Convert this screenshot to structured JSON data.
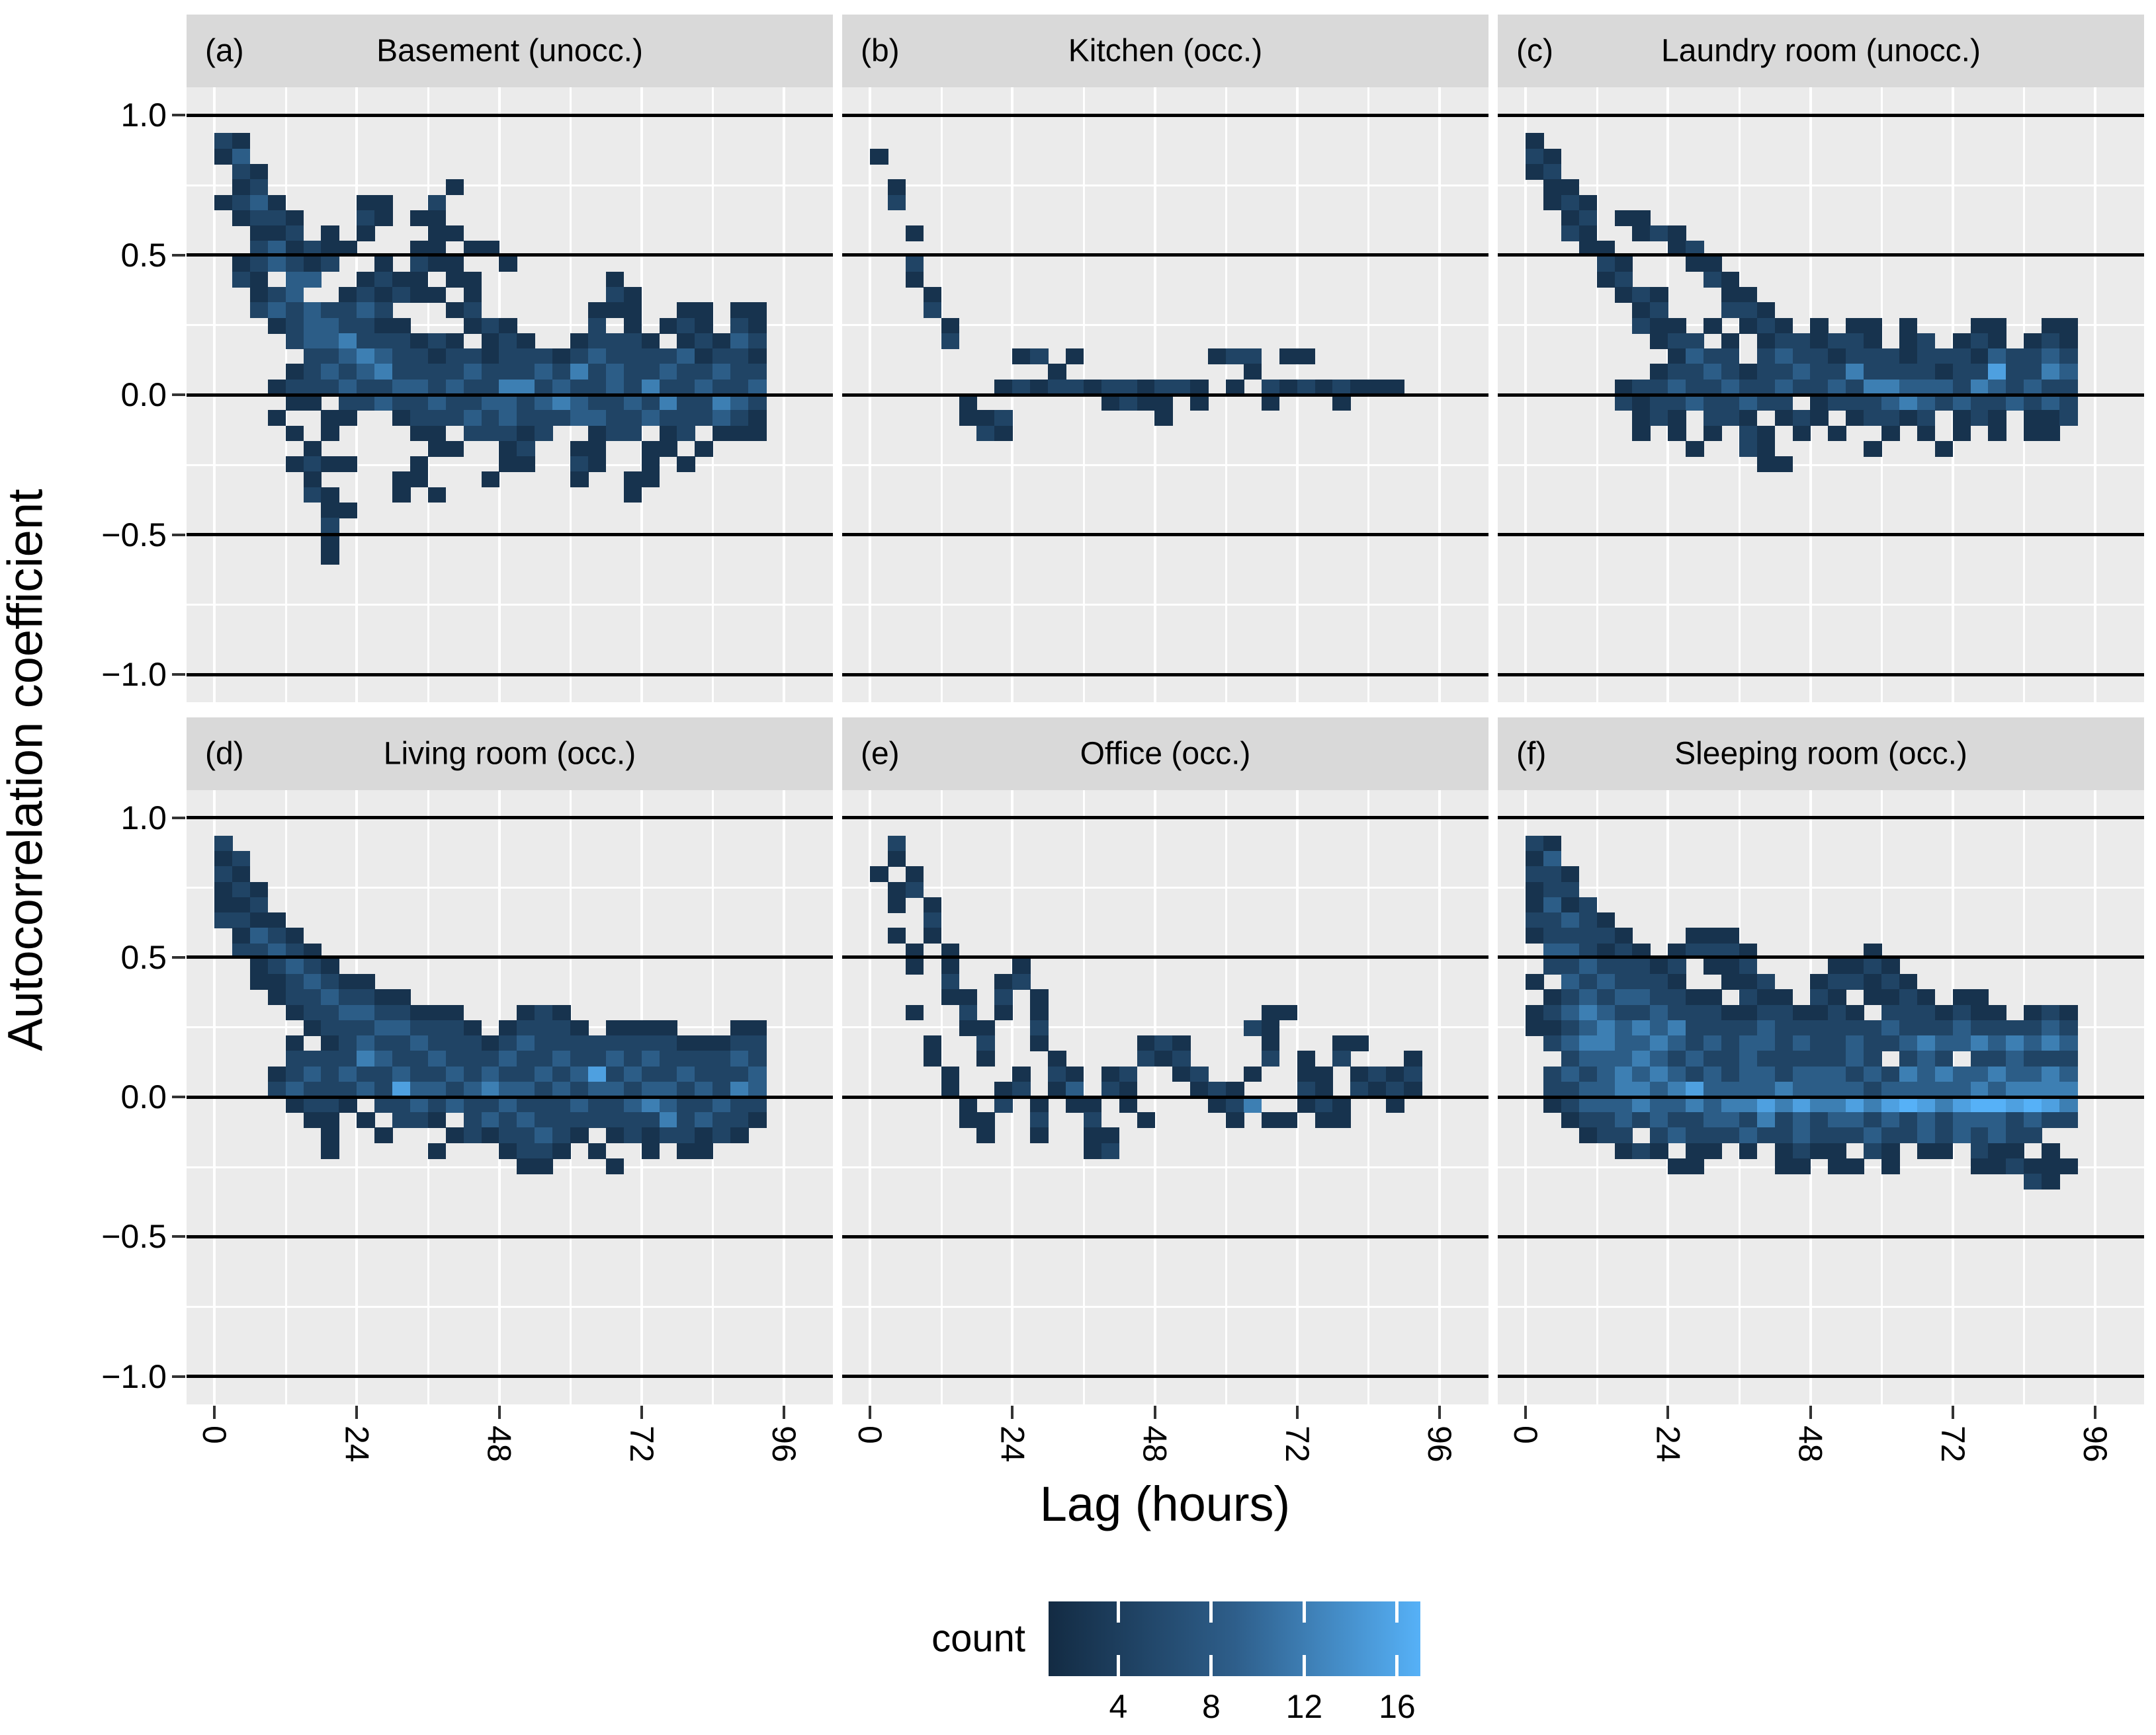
{
  "figure": {
    "y_axis_title": "Autocorrelation coefficient",
    "x_axis_title": "Lag (hours)",
    "y_tick_labels": [
      "1.0",
      "0.5",
      "0.0",
      "−0.5",
      "−1.0"
    ],
    "x_tick_labels": [
      "0",
      "24",
      "48",
      "72",
      "96"
    ]
  },
  "legend": {
    "title": "count",
    "tick_labels": [
      "4",
      "8",
      "12",
      "16"
    ],
    "tick_values": [
      4,
      8,
      12,
      16
    ],
    "scale_min": 1,
    "scale_max": 17,
    "color_low": "#132B43",
    "color_high": "#56B1F7"
  },
  "colors": {
    "panel_bg": "#ebebeb",
    "strip_bg": "#d9d9d9",
    "gridline": "#ffffff",
    "refline": "#000000",
    "tick": "#333333",
    "level_colors": {
      "1": "#17334E",
      "2": "#204465",
      "3": "#2C5D87",
      "4": "#3D7FB3",
      "5": "#4EA0E0",
      "6": "#56B1F7"
    }
  },
  "chart_data": {
    "type": "heatmap",
    "subtype": "binned-2d-autocorrelation",
    "title": "",
    "xlabel": "Lag (hours)",
    "ylabel": "Autocorrelation coefficient",
    "x_range": [
      0,
      96
    ],
    "y_range": [
      -1.0,
      1.0
    ],
    "x_ticks": [
      0,
      24,
      48,
      72,
      96
    ],
    "y_ticks": [
      1.0,
      0.5,
      0.0,
      -0.5,
      -1.0
    ],
    "reference_lines_y": [
      1.0,
      0.5,
      0.0,
      -0.5,
      -1.0
    ],
    "grid_on": true,
    "legend_position": "bottom",
    "bin": {
      "x0": 0,
      "dx": 3,
      "y_top": 0.99,
      "dy": 0.055,
      "n_cols": 32
    },
    "level_to_count": {
      "1": 2,
      "2": 4,
      "3": 7,
      "4": 11,
      "5": 15,
      "6": 17
    },
    "facets": [
      {
        "tag": "(a)",
        "label": "Basement (unocc.)",
        "grid": [
          "................................",
          "21..............................",
          "13..............................",
          ".21.............................",
          ".12..........1..................",
          "1231....11..2...................",
          ".1221...21.11...................",
          "..112.1.1...11..................",
          "..231211...11.11................",
          ".123212..1.211..1...............",
          ".21.33..1211.11.......1.........",
          "..123..121211.1.......21........",
          "..23232232...12......111..11.11.",
          "...12332211...121....2.1.121.21.",
          "....2334222121.121..12221.12132.",
          ".....22343221221222123222231221.",
          "....123234222232223242322322322.",
          "...122232233232244232232422 3223.",
          "....11.2232232233234322324224 32.",
          "...1..11..12223232223322322 2321.",
          "....1.1....11.22212..122.12.111.",
          ".....1......11..12..11..11.1....",
          "....1211...1....11..21..1.1.....",
          ".....1....11...1....1..11.......",
          ".....21...1.1..........1........",
          "......11........................",
          "......2.........................",
          "......1.........................",
          "......1........................."
        ]
      },
      {
        "tag": "(b)",
        "label": "Kitchen (occ.)",
        "grid": [
          "................................",
          "................................",
          "1...............................",
          "................................",
          ".1..............................",
          ".2..............................",
          "................................",
          "..1.............................",
          "................................",
          "..2.............................",
          "..1.............................",
          "...1............................",
          "...2............................",
          "....1...........................",
          "....2...........................",
          "........12.1.......122.11.......",
          "..........1..........1..........",
          ".......121221221221.1.2121211 1..",
          ".....1.......1211.1...1...1.....",
          ".....112........1...............",
          "......21........................"
        ]
      },
      {
        "tag": "(c)",
        "label": "Laundry room (unocc.)",
        "grid": [
          "................................",
          "1...............................",
          "21..............................",
          "12..............................",
          ".11.............................",
          ".121............................",
          "..12.11.........................",
          "..21..121.......................",
          "...11...12......................",
          "....21...11.....................",
          "....12....21....................",
          ".....121...11...................",
          "......12...221..................",
          "......211.1.121.1.11.1...11..11.",
          ".......122.1.1221221.12.121.121.",
          "........1322.23221222122 2132232.",
          ".......122321223224222212252243.",
          ".....12232232232232443332432322.",
          ".....2122322322.122234323223232.",
          "......121.221.121.12212.121.112.",
          "......1.1.1.21.1.1..1.1.1.1.11..",
          ".........1..21.....1...1........",
          ".............11................."
        ]
      },
      {
        "tag": "(d)",
        "label": "Living room (occ.)",
        "grid": [
          "................................",
          "2...............................",
          "12..............................",
          "21..............................",
          "121.............................",
          "112.............................",
          "2211............................",
          ".1321...........................",
          ".22321..........................",
          "..12321.........................",
          "..1123211.......................",
          "...12232211.....................",
          "....1223322111...121............",
          ".....1222332221.12221.1111...11.",
          "....1.1232232221232222222211122.",
          "....222243223222322322323222232.",
          "...123232232232322323523 2232223.",
          "...232223253323433232 3323323243.",
          "....1221.22323223222322 34322322.",
          ".....11.1.221.232322222224 23221.",
          "......1..1...12122321.12122121..",
          "......1.....1...1221.1..1.11....",
          ".................11...1........."
        ]
      },
      {
        "tag": "(e)",
        "label": "Office (occ.)",
        "grid": [
          "................................",
          ".2..............................",
          ".1..............................",
          "1.1.............................",
          ".12.............................",
          ".1.1............................",
          "...2............................",
          ".1.1............................",
          "..1.1...........................",
          "..1.1...1.......................",
          "....2..12.......................",
          "....11.2.1......................",
          "..1..2.1.1............11........",
          ".....11..2...........21.........",
          "...1..2..1.....121....1...11....",
          "...1..1...1....212....2.1.2...1.",
          "....1...1.21.12..12..1..11.1212.",
          "....1..12.13.21...121...21.2121.",
          ".....1.2.1.11.1....124..121..1..",
          ".....11..2..2..1....1.11.11.....",
          "......1..1..11..................",
          "............12.................."
        ]
      },
      {
        "tag": "(f)",
        "label": "Sleeping room (occ.)",
        "grid": [
          "................................",
          "21..............................",
          "13..............................",
          "221.............................",
          "122.............................",
          "1312............................",
          "22321...........................",
          "122221...111....................",
          ".332121.12221......1............",
          ".22322212.112....1121...........",
          "1.3232221..112..122121..........",
          ".1232332211.211.21.1121.11......",
          "12343223222112211 21.2221211.121.",
          "1123434342222322222232223 222232.",
          ".234433432323323223223433434 343.",
          "..23334323223222223 2.232.223222.",
          ".232343432323323332324343343343.",
          ".223344345333343333233333434444.",
          ".123334334344545445456545665654.",
          "..12232322332423233232323332322.",
          "...122.2322232232223223232322...",
          ".....121.11.1.1211.21.11.211.1..",
          "........11....11.11.1....112111.",
          "............................21.."
        ]
      }
    ]
  }
}
